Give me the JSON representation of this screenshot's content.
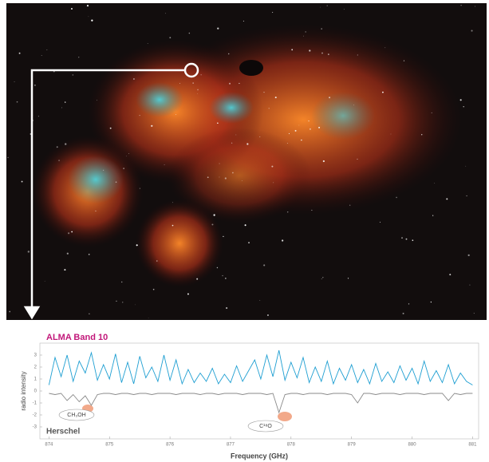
{
  "chart_data": {
    "type": "line",
    "x_label": "Frequency (GHz)",
    "y_label": "radio intensity",
    "x": [
      874.0,
      874.1,
      874.2,
      874.3,
      874.4,
      874.5,
      874.6,
      874.7,
      874.8,
      874.9,
      875.0,
      875.1,
      875.2,
      875.3,
      875.4,
      875.5,
      875.6,
      875.7,
      875.8,
      875.9,
      876.0,
      876.1,
      876.2,
      876.3,
      876.4,
      876.5,
      876.6,
      876.7,
      876.8,
      876.9,
      877.0,
      877.1,
      877.2,
      877.3,
      877.4,
      877.5,
      877.6,
      877.7,
      877.8,
      877.9,
      878.0,
      878.1,
      878.2,
      878.3,
      878.4,
      878.5,
      878.6,
      878.7,
      878.8,
      878.9,
      879.0,
      879.1,
      879.2,
      879.3,
      879.4,
      879.5,
      879.6,
      879.7,
      879.8,
      879.9,
      880.0,
      880.1,
      880.2,
      880.3,
      880.4,
      880.5,
      880.6,
      880.7,
      880.8,
      880.9,
      881.0
    ],
    "series": [
      {
        "name": "ALMA Band 10",
        "color": "#1f9fd2",
        "values": [
          0.5,
          2.8,
          1.2,
          3.0,
          0.8,
          2.5,
          1.5,
          3.2,
          0.9,
          2.2,
          1.0,
          3.1,
          0.7,
          2.4,
          0.6,
          2.9,
          1.1,
          2.0,
          0.8,
          3.0,
          0.9,
          2.6,
          0.6,
          1.8,
          0.7,
          1.5,
          0.8,
          1.9,
          0.6,
          1.4,
          0.7,
          2.1,
          0.8,
          1.7,
          2.6,
          1.0,
          3.0,
          1.2,
          3.4,
          0.9,
          2.4,
          1.1,
          2.8,
          0.7,
          2.0,
          0.8,
          2.5,
          0.6,
          1.9,
          0.9,
          2.2,
          0.7,
          1.8,
          0.6,
          2.3,
          0.8,
          1.6,
          0.7,
          2.1,
          0.9,
          1.9,
          0.6,
          2.5,
          0.8,
          1.7,
          0.7,
          2.2,
          0.6,
          1.5,
          0.8,
          0.5
        ]
      },
      {
        "name": "Herschel",
        "color": "#8a8a8a",
        "values": [
          -0.2,
          -0.3,
          -0.2,
          -0.8,
          -0.3,
          -0.9,
          -0.4,
          -1.2,
          -0.3,
          -0.2,
          -0.2,
          -0.3,
          -0.2,
          -0.2,
          -0.3,
          -0.2,
          -0.2,
          -0.3,
          -0.2,
          -0.2,
          -0.2,
          -0.3,
          -0.2,
          -0.2,
          -0.2,
          -0.3,
          -0.2,
          -0.2,
          -0.3,
          -0.2,
          -0.2,
          -0.2,
          -0.3,
          -0.2,
          -0.2,
          -0.2,
          -0.3,
          -0.2,
          -1.8,
          -0.3,
          -0.2,
          -0.2,
          -0.3,
          -0.2,
          -0.2,
          -0.2,
          -0.3,
          -0.2,
          -0.2,
          -0.2,
          -0.3,
          -1.0,
          -0.2,
          -0.2,
          -0.3,
          -0.2,
          -0.2,
          -0.2,
          -0.3,
          -0.2,
          -0.2,
          -0.2,
          -0.3,
          -0.2,
          -0.2,
          -0.2,
          -0.8,
          -0.2,
          -0.3,
          -0.2,
          -0.2
        ]
      }
    ],
    "annotations": [
      "CH₃OH",
      "C¹⁸O"
    ],
    "xlim": [
      873.85,
      881.1
    ],
    "xticks": [
      874,
      875,
      876,
      877,
      878,
      879,
      880,
      881
    ],
    "ylim": [
      -4,
      4
    ],
    "yticks": [
      -3,
      -2,
      -1,
      0,
      1,
      2,
      3
    ]
  }
}
